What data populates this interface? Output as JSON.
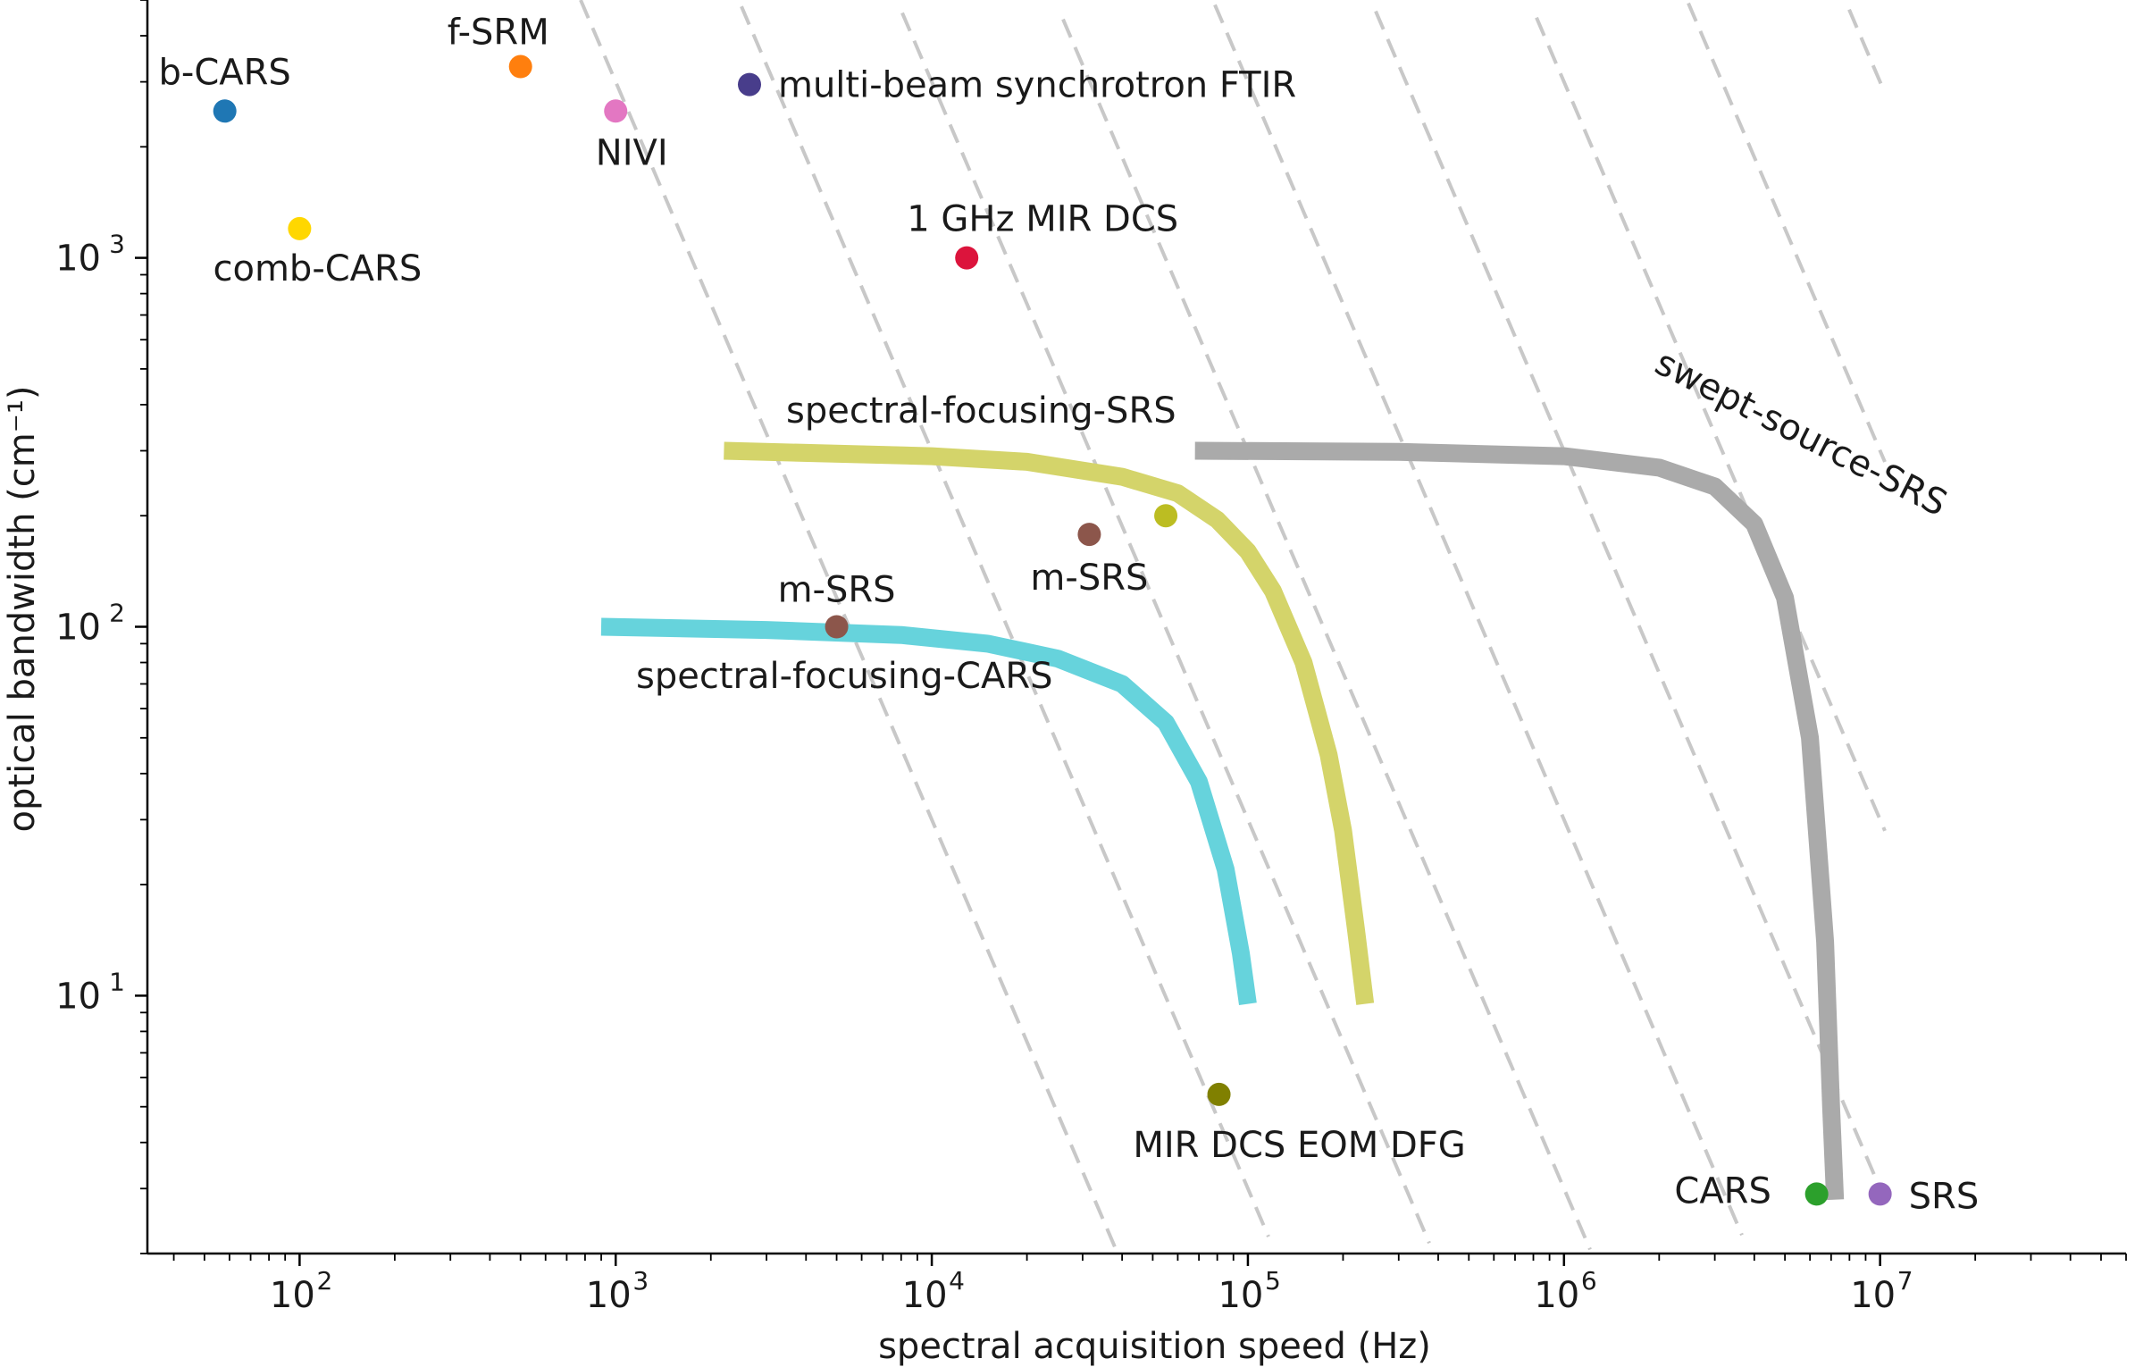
{
  "chart_data": {
    "type": "scatter",
    "xlabel": "spectral acquisition speed (Hz)",
    "ylabel": "optical bandwidth (cm⁻¹)",
    "xscale": "log",
    "yscale": "log",
    "xlim": [
      33,
      60000000
    ],
    "ylim": [
      2.0,
      5000
    ],
    "grid": false,
    "x_ticks": [
      {
        "value": 100,
        "base": "10",
        "exp": "2"
      },
      {
        "value": 1000,
        "base": "10",
        "exp": "3"
      },
      {
        "value": 10000,
        "base": "10",
        "exp": "4"
      },
      {
        "value": 100000,
        "base": "10",
        "exp": "5"
      },
      {
        "value": 1000000,
        "base": "10",
        "exp": "6"
      },
      {
        "value": 10000000,
        "base": "10",
        "exp": "7"
      }
    ],
    "y_ticks": [
      {
        "value": 10,
        "base": "10",
        "exp": "1"
      },
      {
        "value": 100,
        "base": "10",
        "exp": "2"
      },
      {
        "value": 1000,
        "base": "10",
        "exp": "3"
      }
    ],
    "points": [
      {
        "label": "b-CARS",
        "x": 58,
        "y": 2500,
        "color": "#1f77b4"
      },
      {
        "label": "f-SRM",
        "x": 500,
        "y": 3300,
        "color": "#ff7f0e"
      },
      {
        "label": "NIVI",
        "x": 1000,
        "y": 2500,
        "color": "#e377c2"
      },
      {
        "label": "multi-beam synchrotron FTIR",
        "x": 2650,
        "y": 2950,
        "color": "#483d8b"
      },
      {
        "label": "comb-CARS",
        "x": 100,
        "y": 1200,
        "color": "#ffd700"
      },
      {
        "label": "1 GHz MIR DCS",
        "x": 12900,
        "y": 1000,
        "color": "#dc143c"
      },
      {
        "label": "m-SRS",
        "x": 31500,
        "y": 178,
        "color": "#8c564b"
      },
      {
        "label": "",
        "x": 55000,
        "y": 200,
        "color": "#bcbd22"
      },
      {
        "label": "m-SRS",
        "x": 5000,
        "y": 100,
        "color": "#8c564b"
      },
      {
        "label": "MIR DCS EOM DFG",
        "x": 81000,
        "y": 5.4,
        "color": "#808000"
      },
      {
        "label": "CARS",
        "x": 6300000,
        "y": 2.9,
        "color": "#2ca02c"
      },
      {
        "label": "SRS",
        "x": 10000000,
        "y": 2.9,
        "color": "#9467bd"
      }
    ],
    "curves": [
      {
        "name": "spectral-focusing-SRS",
        "color": "#d4d46a",
        "x": [
          2200,
          10000,
          20000,
          40000,
          60000,
          80000,
          100000,
          120000,
          150000,
          180000,
          200000,
          220000,
          235000
        ],
        "y": [
          300,
          290,
          280,
          255,
          230,
          195,
          160,
          125,
          80,
          45,
          28,
          15,
          9.5
        ]
      },
      {
        "name": "spectral-focusing-CARS",
        "color": "#66d3dc",
        "x": [
          900,
          3000,
          8000,
          15000,
          25000,
          40000,
          55000,
          70000,
          85000,
          95000,
          100000
        ],
        "y": [
          100,
          98,
          95,
          90,
          82,
          70,
          55,
          38,
          22,
          13,
          9.5
        ]
      },
      {
        "name": "swept-source-SRS",
        "color": "#aaaaaa",
        "x": [
          68000,
          300000,
          1000000,
          2000000,
          3000000,
          4000000,
          5000000,
          6000000,
          6700000,
          7000000,
          7200000
        ],
        "y": [
          300,
          298,
          290,
          270,
          240,
          190,
          120,
          50,
          14,
          5,
          2.8
        ]
      }
    ],
    "iso_lines": {
      "style": "dashed",
      "color": "#c8c8c8",
      "slope": -0.5,
      "throughputs": [
        3000000000,
        30000000000,
        300000000000,
        3000000000000,
        30000000000000,
        300000000000000,
        3000000000000000,
        30000000000000000,
        300000000000000000,
        3000000000000000000
      ]
    }
  }
}
